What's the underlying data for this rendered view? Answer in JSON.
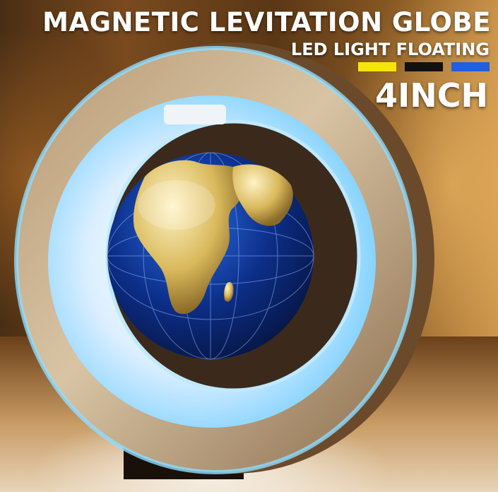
{
  "headline": {
    "title": "MAGNETIC LEVITATION GLOBE",
    "subtitle": "LED LIGHT FLOATING",
    "size": "4INCH"
  },
  "light_colors": [
    "#f5e60a",
    "#111111",
    "#1f5fe0"
  ],
  "product": {
    "frame_color": "#d9c5a3",
    "glow_color": "#7fd6ff",
    "globe_ocean_color": "#0b2a7a",
    "land_color": "#e0c06a"
  }
}
